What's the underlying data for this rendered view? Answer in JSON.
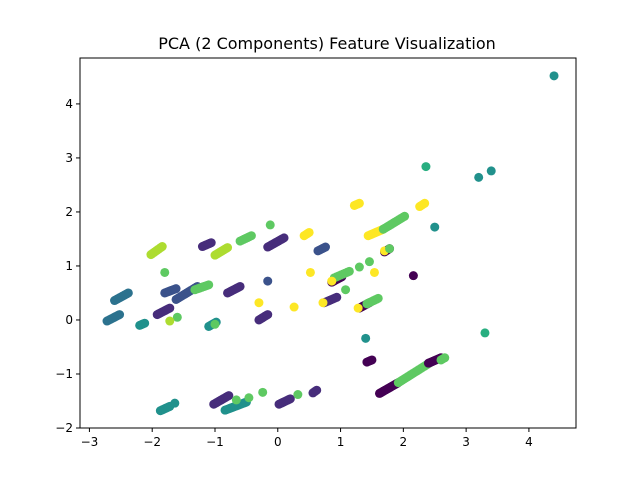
{
  "chart_data": {
    "type": "scatter",
    "title": "PCA (2 Components) Feature Visualization",
    "xlabel": "",
    "ylabel": "",
    "xlim": [
      -3.15,
      4.75
    ],
    "ylim": [
      -2.0,
      4.85
    ],
    "xticks": [
      -3,
      -2,
      -1,
      0,
      1,
      2,
      3,
      4
    ],
    "yticks": [
      -2,
      -1,
      0,
      1,
      2,
      3,
      4
    ],
    "grid": false,
    "colors": {
      "dark_purple": "#440154",
      "purple": "#472d7b",
      "indigo": "#3b528b",
      "blue": "#2c728e",
      "teal": "#21918c",
      "green_teal": "#28ae80",
      "green": "#5ec962",
      "light_green": "#addc30",
      "yellow": "#fde725"
    },
    "segments": [
      {
        "color": "blue",
        "from": [
          -2.72,
          -0.02
        ],
        "to": [
          -2.52,
          0.1
        ],
        "n": 12
      },
      {
        "color": "blue",
        "from": [
          -2.6,
          0.36
        ],
        "to": [
          -2.38,
          0.5
        ],
        "n": 12
      },
      {
        "color": "teal",
        "from": [
          -2.2,
          -0.1
        ],
        "to": [
          -2.12,
          -0.06
        ],
        "n": 5
      },
      {
        "color": "light_green",
        "from": [
          -2.02,
          1.21
        ],
        "to": [
          -1.84,
          1.36
        ],
        "n": 11
      },
      {
        "color": "teal",
        "from": [
          -1.87,
          -1.68
        ],
        "to": [
          -1.72,
          -1.6
        ],
        "n": 9
      },
      {
        "color": "indigo",
        "from": [
          -1.8,
          0.5
        ],
        "to": [
          -1.62,
          0.58
        ],
        "n": 10
      },
      {
        "color": "purple",
        "from": [
          -1.92,
          0.1
        ],
        "to": [
          -1.72,
          0.22
        ],
        "n": 11
      },
      {
        "color": "indigo",
        "from": [
          -1.62,
          0.38
        ],
        "to": [
          -1.28,
          0.62
        ],
        "n": 16
      },
      {
        "color": "green",
        "from": [
          -1.32,
          0.56
        ],
        "to": [
          -1.1,
          0.65
        ],
        "n": 9
      },
      {
        "color": "purple",
        "from": [
          -1.2,
          1.36
        ],
        "to": [
          -1.06,
          1.43
        ],
        "n": 8
      },
      {
        "color": "light_green",
        "from": [
          -1.0,
          1.2
        ],
        "to": [
          -0.8,
          1.34
        ],
        "n": 12
      },
      {
        "color": "green",
        "from": [
          -0.6,
          1.46
        ],
        "to": [
          -0.42,
          1.56
        ],
        "n": 7
      },
      {
        "color": "purple",
        "from": [
          -0.8,
          0.5
        ],
        "to": [
          -0.6,
          0.62
        ],
        "n": 11
      },
      {
        "color": "teal",
        "from": [
          -1.1,
          -0.12
        ],
        "to": [
          -0.98,
          -0.04
        ],
        "n": 8
      },
      {
        "color": "purple",
        "from": [
          -1.02,
          -1.56
        ],
        "to": [
          -0.78,
          -1.4
        ],
        "n": 12
      },
      {
        "color": "teal",
        "from": [
          -0.84,
          -1.67
        ],
        "to": [
          -0.5,
          -1.52
        ],
        "n": 18
      },
      {
        "color": "purple",
        "from": [
          -0.3,
          0.0
        ],
        "to": [
          -0.16,
          0.1
        ],
        "n": 8
      },
      {
        "color": "purple",
        "from": [
          -0.16,
          1.35
        ],
        "to": [
          0.1,
          1.52
        ],
        "n": 14
      },
      {
        "color": "purple",
        "from": [
          0.02,
          -1.56
        ],
        "to": [
          0.2,
          -1.46
        ],
        "n": 10
      },
      {
        "color": "purple",
        "from": [
          0.56,
          -1.35
        ],
        "to": [
          0.62,
          -1.3
        ],
        "n": 4
      },
      {
        "color": "indigo",
        "from": [
          0.64,
          1.28
        ],
        "to": [
          0.76,
          1.35
        ],
        "n": 6
      },
      {
        "color": "yellow",
        "from": [
          0.42,
          1.56
        ],
        "to": [
          0.5,
          1.62
        ],
        "n": 4
      },
      {
        "color": "dark_purple",
        "from": [
          0.86,
          0.7
        ],
        "to": [
          1.02,
          0.8
        ],
        "n": 8
      },
      {
        "color": "purple",
        "from": [
          0.74,
          0.32
        ],
        "to": [
          0.94,
          0.42
        ],
        "n": 10
      },
      {
        "color": "green",
        "from": [
          0.9,
          0.78
        ],
        "to": [
          1.14,
          0.9
        ],
        "n": 8
      },
      {
        "color": "yellow",
        "from": [
          1.22,
          2.12
        ],
        "to": [
          1.3,
          2.16
        ],
        "n": 4
      },
      {
        "color": "yellow",
        "from": [
          1.44,
          1.56
        ],
        "to": [
          1.68,
          1.68
        ],
        "n": 12
      },
      {
        "color": "green",
        "from": [
          1.68,
          1.68
        ],
        "to": [
          2.02,
          1.92
        ],
        "n": 16
      },
      {
        "color": "dark_purple",
        "from": [
          1.7,
          1.26
        ],
        "to": [
          1.78,
          1.32
        ],
        "n": 5
      },
      {
        "color": "yellow",
        "from": [
          2.26,
          2.1
        ],
        "to": [
          2.34,
          2.16
        ],
        "n": 4
      },
      {
        "color": "dark_purple",
        "from": [
          1.3,
          0.22
        ],
        "to": [
          1.46,
          0.32
        ],
        "n": 8
      },
      {
        "color": "green",
        "from": [
          1.42,
          0.3
        ],
        "to": [
          1.6,
          0.4
        ],
        "n": 8
      },
      {
        "color": "dark_purple",
        "from": [
          1.42,
          -0.78
        ],
        "to": [
          1.5,
          -0.74
        ],
        "n": 4
      },
      {
        "color": "dark_purple",
        "from": [
          1.62,
          -1.36
        ],
        "to": [
          1.92,
          -1.16
        ],
        "n": 22
      },
      {
        "color": "green",
        "from": [
          1.92,
          -1.16
        ],
        "to": [
          2.44,
          -0.78
        ],
        "n": 22
      },
      {
        "color": "dark_purple",
        "from": [
          2.4,
          -0.8
        ],
        "to": [
          2.6,
          -0.7
        ],
        "n": 12
      },
      {
        "color": "green",
        "from": [
          2.6,
          -0.74
        ],
        "to": [
          2.66,
          -0.7
        ],
        "n": 3
      }
    ],
    "points": [
      {
        "color": "green",
        "x": -1.8,
        "y": 0.88
      },
      {
        "color": "green",
        "x": -1.6,
        "y": 0.05
      },
      {
        "color": "light_green",
        "x": -1.72,
        "y": -0.02
      },
      {
        "color": "teal",
        "x": -1.64,
        "y": -1.54
      },
      {
        "color": "green",
        "x": -1.0,
        "y": -0.08
      },
      {
        "color": "green",
        "x": -0.66,
        "y": -1.48
      },
      {
        "color": "green",
        "x": -0.46,
        "y": -1.44
      },
      {
        "color": "green",
        "x": -0.24,
        "y": -1.34
      },
      {
        "color": "green",
        "x": 0.32,
        "y": -1.38
      },
      {
        "color": "green",
        "x": -0.12,
        "y": 1.76
      },
      {
        "color": "indigo",
        "x": -0.16,
        "y": 0.72
      },
      {
        "color": "yellow",
        "x": -0.3,
        "y": 0.32
      },
      {
        "color": "yellow",
        "x": 0.26,
        "y": 0.24
      },
      {
        "color": "yellow",
        "x": 0.52,
        "y": 0.88
      },
      {
        "color": "yellow",
        "x": 0.72,
        "y": 0.32
      },
      {
        "color": "yellow",
        "x": 0.86,
        "y": 0.72
      },
      {
        "color": "green",
        "x": 1.08,
        "y": 0.56
      },
      {
        "color": "green",
        "x": 1.3,
        "y": 0.98
      },
      {
        "color": "green",
        "x": 1.46,
        "y": 1.08
      },
      {
        "color": "yellow",
        "x": 1.28,
        "y": 0.22
      },
      {
        "color": "yellow",
        "x": 1.54,
        "y": 0.88
      },
      {
        "color": "yellow",
        "x": 1.7,
        "y": 1.28
      },
      {
        "color": "green",
        "x": 1.78,
        "y": 1.32
      },
      {
        "color": "dark_purple",
        "x": 2.16,
        "y": 0.82
      },
      {
        "color": "green_teal",
        "x": 2.36,
        "y": 2.84
      },
      {
        "color": "teal",
        "x": 2.5,
        "y": 1.72
      },
      {
        "color": "teal",
        "x": 1.4,
        "y": -0.34
      },
      {
        "color": "teal",
        "x": 3.2,
        "y": 2.64
      },
      {
        "color": "teal",
        "x": 3.4,
        "y": 2.76
      },
      {
        "color": "green_teal",
        "x": 3.3,
        "y": -0.24
      },
      {
        "color": "teal",
        "x": 4.4,
        "y": 4.52
      }
    ]
  }
}
